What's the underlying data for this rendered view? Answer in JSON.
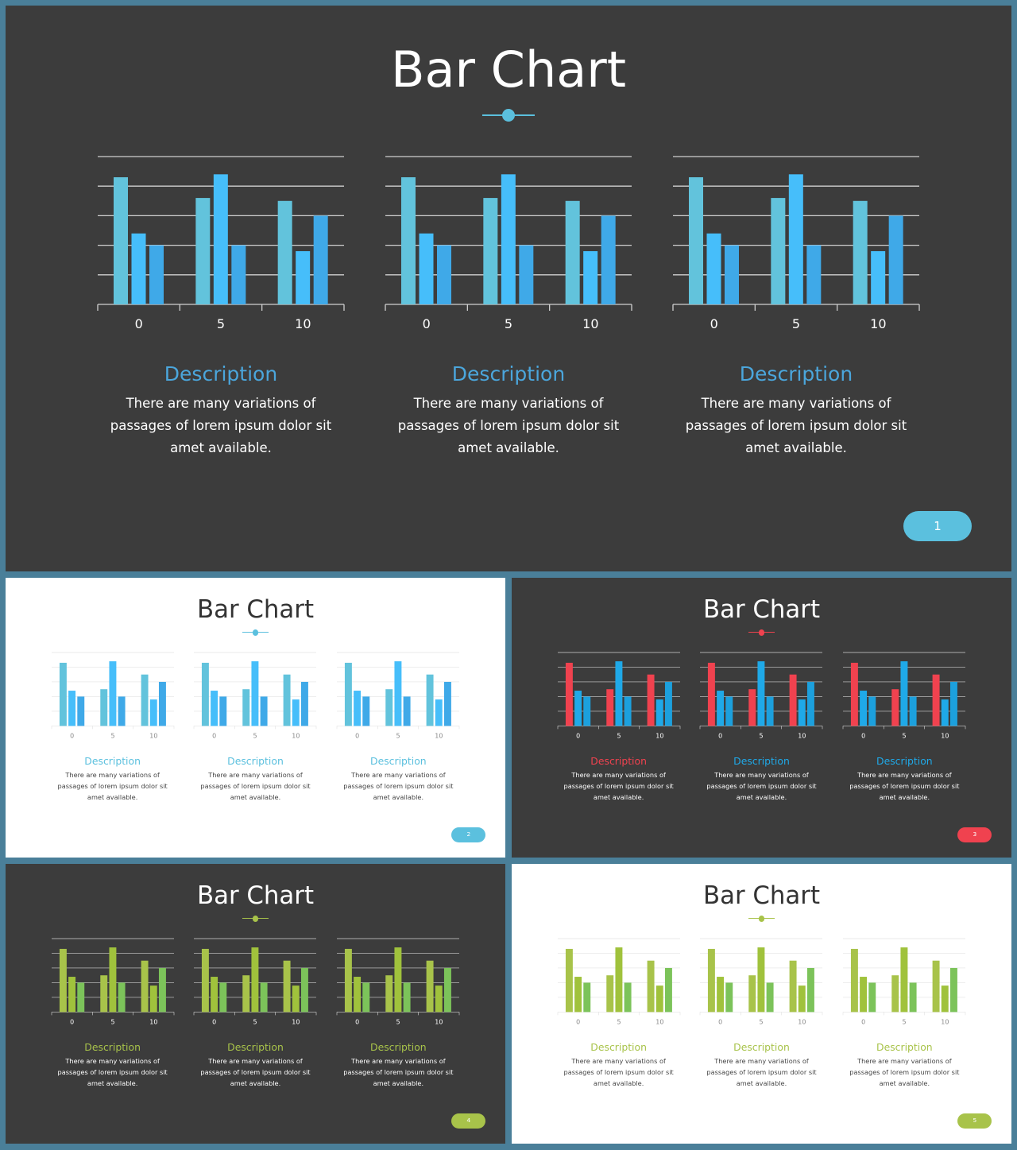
{
  "slides": [
    {
      "id": "slide-1",
      "theme": "dark",
      "title": "Bar Chart",
      "accent": "#5bc0de",
      "page_number": "1",
      "panels": [
        {
          "desc_title": "Description",
          "desc_title_color": "#4ba6dc",
          "desc_text": "There are many variations of passages of lorem ipsum dolor sit amet available.",
          "chart_data": {
            "type": "bar",
            "categories": [
              "0",
              "5",
              "10"
            ],
            "series": [
              {
                "values": [
                  4.3,
                  3.6,
                  3.5
                ],
                "color": "#62c3dc"
              },
              {
                "values": [
                  2.4,
                  4.4,
                  1.8
                ],
                "color": "#46befa"
              },
              {
                "values": [
                  2.0,
                  2.0,
                  3.0
                ],
                "color": "#3fa9e8"
              }
            ],
            "ylim": [
              0,
              5
            ],
            "grid": true
          }
        },
        {
          "desc_title": "Description",
          "desc_title_color": "#4ba6dc",
          "desc_text": "There are many variations of passages of lorem ipsum dolor sit amet available.",
          "chart_data": {
            "type": "bar",
            "categories": [
              "0",
              "5",
              "10"
            ],
            "series": [
              {
                "values": [
                  4.3,
                  3.6,
                  3.5
                ],
                "color": "#62c3dc"
              },
              {
                "values": [
                  2.4,
                  4.4,
                  1.8
                ],
                "color": "#46befa"
              },
              {
                "values": [
                  2.0,
                  2.0,
                  3.0
                ],
                "color": "#3fa9e8"
              }
            ],
            "ylim": [
              0,
              5
            ],
            "grid": true
          }
        },
        {
          "desc_title": "Description",
          "desc_title_color": "#4ba6dc",
          "desc_text": "There are many variations of passages of lorem ipsum dolor sit amet available.",
          "chart_data": {
            "type": "bar",
            "categories": [
              "0",
              "5",
              "10"
            ],
            "series": [
              {
                "values": [
                  4.3,
                  3.6,
                  3.5
                ],
                "color": "#62c3dc"
              },
              {
                "values": [
                  2.4,
                  4.4,
                  1.8
                ],
                "color": "#46befa"
              },
              {
                "values": [
                  2.0,
                  2.0,
                  3.0
                ],
                "color": "#3fa9e8"
              }
            ],
            "ylim": [
              0,
              5
            ],
            "grid": true
          }
        }
      ]
    },
    {
      "id": "slide-2",
      "theme": "light",
      "title": "Bar Chart",
      "accent": "#5bc0de",
      "page_number": "2",
      "panels": [
        {
          "desc_title": "Description",
          "desc_title_color": "#5bc0de",
          "desc_text": "There are many variations of passages of lorem ipsum dolor sit amet available.",
          "chart_data": {
            "type": "bar",
            "categories": [
              "0",
              "5",
              "10"
            ],
            "series": [
              {
                "values": [
                  4.3,
                  2.5,
                  3.5
                ],
                "color": "#62c3dc"
              },
              {
                "values": [
                  2.4,
                  4.4,
                  1.8
                ],
                "color": "#46befa"
              },
              {
                "values": [
                  2.0,
                  2.0,
                  3.0
                ],
                "color": "#3fa9e8"
              }
            ],
            "ylim": [
              0,
              5
            ],
            "grid": true
          }
        },
        {
          "desc_title": "Description",
          "desc_title_color": "#5bc0de",
          "desc_text": "There are many variations of passages of lorem ipsum dolor sit amet available.",
          "chart_data": {
            "type": "bar",
            "categories": [
              "0",
              "5",
              "10"
            ],
            "series": [
              {
                "values": [
                  4.3,
                  2.5,
                  3.5
                ],
                "color": "#62c3dc"
              },
              {
                "values": [
                  2.4,
                  4.4,
                  1.8
                ],
                "color": "#46befa"
              },
              {
                "values": [
                  2.0,
                  2.0,
                  3.0
                ],
                "color": "#3fa9e8"
              }
            ],
            "ylim": [
              0,
              5
            ],
            "grid": true
          }
        },
        {
          "desc_title": "Description",
          "desc_title_color": "#5bc0de",
          "desc_text": "There are many variations of passages of lorem ipsum dolor sit amet available.",
          "chart_data": {
            "type": "bar",
            "categories": [
              "0",
              "5",
              "10"
            ],
            "series": [
              {
                "values": [
                  4.3,
                  2.5,
                  3.5
                ],
                "color": "#62c3dc"
              },
              {
                "values": [
                  2.4,
                  4.4,
                  1.8
                ],
                "color": "#46befa"
              },
              {
                "values": [
                  2.0,
                  2.0,
                  3.0
                ],
                "color": "#3fa9e8"
              }
            ],
            "ylim": [
              0,
              5
            ],
            "grid": true
          }
        }
      ]
    },
    {
      "id": "slide-3",
      "theme": "dark",
      "title": "Bar Chart",
      "accent": "#f0424f",
      "page_number": "3",
      "panels": [
        {
          "desc_title": "Description",
          "desc_title_color": "#f0424f",
          "desc_text": "There are many variations of passages of lorem ipsum dolor sit amet available.",
          "chart_data": {
            "type": "bar",
            "categories": [
              "0",
              "5",
              "10"
            ],
            "series": [
              {
                "values": [
                  4.3,
                  2.5,
                  3.5
                ],
                "color": "#f0424f"
              },
              {
                "values": [
                  2.4,
                  4.4,
                  1.8
                ],
                "color": "#1fa9e8"
              },
              {
                "values": [
                  2.0,
                  2.0,
                  3.0
                ],
                "color": "#1ca0dd"
              }
            ],
            "ylim": [
              0,
              5
            ],
            "grid": true
          }
        },
        {
          "desc_title": "Description",
          "desc_title_color": "#1fa9e8",
          "desc_text": "There are many variations of passages of lorem ipsum dolor sit amet available.",
          "chart_data": {
            "type": "bar",
            "categories": [
              "0",
              "5",
              "10"
            ],
            "series": [
              {
                "values": [
                  4.3,
                  2.5,
                  3.5
                ],
                "color": "#f0424f"
              },
              {
                "values": [
                  2.4,
                  4.4,
                  1.8
                ],
                "color": "#1fa9e8"
              },
              {
                "values": [
                  2.0,
                  2.0,
                  3.0
                ],
                "color": "#1ca0dd"
              }
            ],
            "ylim": [
              0,
              5
            ],
            "grid": true
          }
        },
        {
          "desc_title": "Description",
          "desc_title_color": "#1fa9e8",
          "desc_text": "There are many variations of passages of lorem ipsum dolor sit amet available.",
          "chart_data": {
            "type": "bar",
            "categories": [
              "0",
              "5",
              "10"
            ],
            "series": [
              {
                "values": [
                  4.3,
                  2.5,
                  3.5
                ],
                "color": "#f0424f"
              },
              {
                "values": [
                  2.4,
                  4.4,
                  1.8
                ],
                "color": "#1fa9e8"
              },
              {
                "values": [
                  2.0,
                  2.0,
                  3.0
                ],
                "color": "#1ca0dd"
              }
            ],
            "ylim": [
              0,
              5
            ],
            "grid": true
          }
        }
      ]
    },
    {
      "id": "slide-4",
      "theme": "dark",
      "title": "Bar Chart",
      "accent": "#a8c34a",
      "page_number": "4",
      "panels": [
        {
          "desc_title": "Description",
          "desc_title_color": "#a8c34a",
          "desc_text": "There are many variations of passages of lorem ipsum dolor sit amet available.",
          "chart_data": {
            "type": "bar",
            "categories": [
              "0",
              "5",
              "10"
            ],
            "series": [
              {
                "values": [
                  4.3,
                  2.5,
                  3.5
                ],
                "color": "#a8c34a"
              },
              {
                "values": [
                  2.4,
                  4.4,
                  1.8
                ],
                "color": "#a0c23c"
              },
              {
                "values": [
                  2.0,
                  2.0,
                  3.0
                ],
                "color": "#7cc35a"
              }
            ],
            "ylim": [
              0,
              5
            ],
            "grid": true
          }
        },
        {
          "desc_title": "Description",
          "desc_title_color": "#a8c34a",
          "desc_text": "There are many variations of passages of lorem ipsum dolor sit amet available.",
          "chart_data": {
            "type": "bar",
            "categories": [
              "0",
              "5",
              "10"
            ],
            "series": [
              {
                "values": [
                  4.3,
                  2.5,
                  3.5
                ],
                "color": "#a8c34a"
              },
              {
                "values": [
                  2.4,
                  4.4,
                  1.8
                ],
                "color": "#a0c23c"
              },
              {
                "values": [
                  2.0,
                  2.0,
                  3.0
                ],
                "color": "#7cc35a"
              }
            ],
            "ylim": [
              0,
              5
            ],
            "grid": true
          }
        },
        {
          "desc_title": "Description",
          "desc_title_color": "#a8c34a",
          "desc_text": "There are many variations of passages of lorem ipsum dolor sit amet available.",
          "chart_data": {
            "type": "bar",
            "categories": [
              "0",
              "5",
              "10"
            ],
            "series": [
              {
                "values": [
                  4.3,
                  2.5,
                  3.5
                ],
                "color": "#a8c34a"
              },
              {
                "values": [
                  2.4,
                  4.4,
                  1.8
                ],
                "color": "#a0c23c"
              },
              {
                "values": [
                  2.0,
                  2.0,
                  3.0
                ],
                "color": "#7cc35a"
              }
            ],
            "ylim": [
              0,
              5
            ],
            "grid": true
          }
        }
      ]
    },
    {
      "id": "slide-5",
      "theme": "light",
      "title": "Bar Chart",
      "accent": "#a8c34a",
      "page_number": "5",
      "panels": [
        {
          "desc_title": "Description",
          "desc_title_color": "#a8c34a",
          "desc_text": "There are many variations of passages of lorem ipsum dolor sit amet available.",
          "chart_data": {
            "type": "bar",
            "categories": [
              "0",
              "5",
              "10"
            ],
            "series": [
              {
                "values": [
                  4.3,
                  2.5,
                  3.5
                ],
                "color": "#a8c34a"
              },
              {
                "values": [
                  2.4,
                  4.4,
                  1.8
                ],
                "color": "#a0c23c"
              },
              {
                "values": [
                  2.0,
                  2.0,
                  3.0
                ],
                "color": "#7cc35a"
              }
            ],
            "ylim": [
              0,
              5
            ],
            "grid": true
          }
        },
        {
          "desc_title": "Description",
          "desc_title_color": "#a8c34a",
          "desc_text": "There are many variations of passages of lorem ipsum dolor sit amet available.",
          "chart_data": {
            "type": "bar",
            "categories": [
              "0",
              "5",
              "10"
            ],
            "series": [
              {
                "values": [
                  4.3,
                  2.5,
                  3.5
                ],
                "color": "#a8c34a"
              },
              {
                "values": [
                  2.4,
                  4.4,
                  1.8
                ],
                "color": "#a0c23c"
              },
              {
                "values": [
                  2.0,
                  2.0,
                  3.0
                ],
                "color": "#7cc35a"
              }
            ],
            "ylim": [
              0,
              5
            ],
            "grid": true
          }
        },
        {
          "desc_title": "Description",
          "desc_title_color": "#a8c34a",
          "desc_text": "There are many variations of passages of lorem ipsum dolor sit amet available.",
          "chart_data": {
            "type": "bar",
            "categories": [
              "0",
              "5",
              "10"
            ],
            "series": [
              {
                "values": [
                  4.3,
                  2.5,
                  3.5
                ],
                "color": "#a8c34a"
              },
              {
                "values": [
                  2.4,
                  4.4,
                  1.8
                ],
                "color": "#a0c23c"
              },
              {
                "values": [
                  2.0,
                  2.0,
                  3.0
                ],
                "color": "#7cc35a"
              }
            ],
            "ylim": [
              0,
              5
            ],
            "grid": true
          }
        }
      ]
    }
  ]
}
